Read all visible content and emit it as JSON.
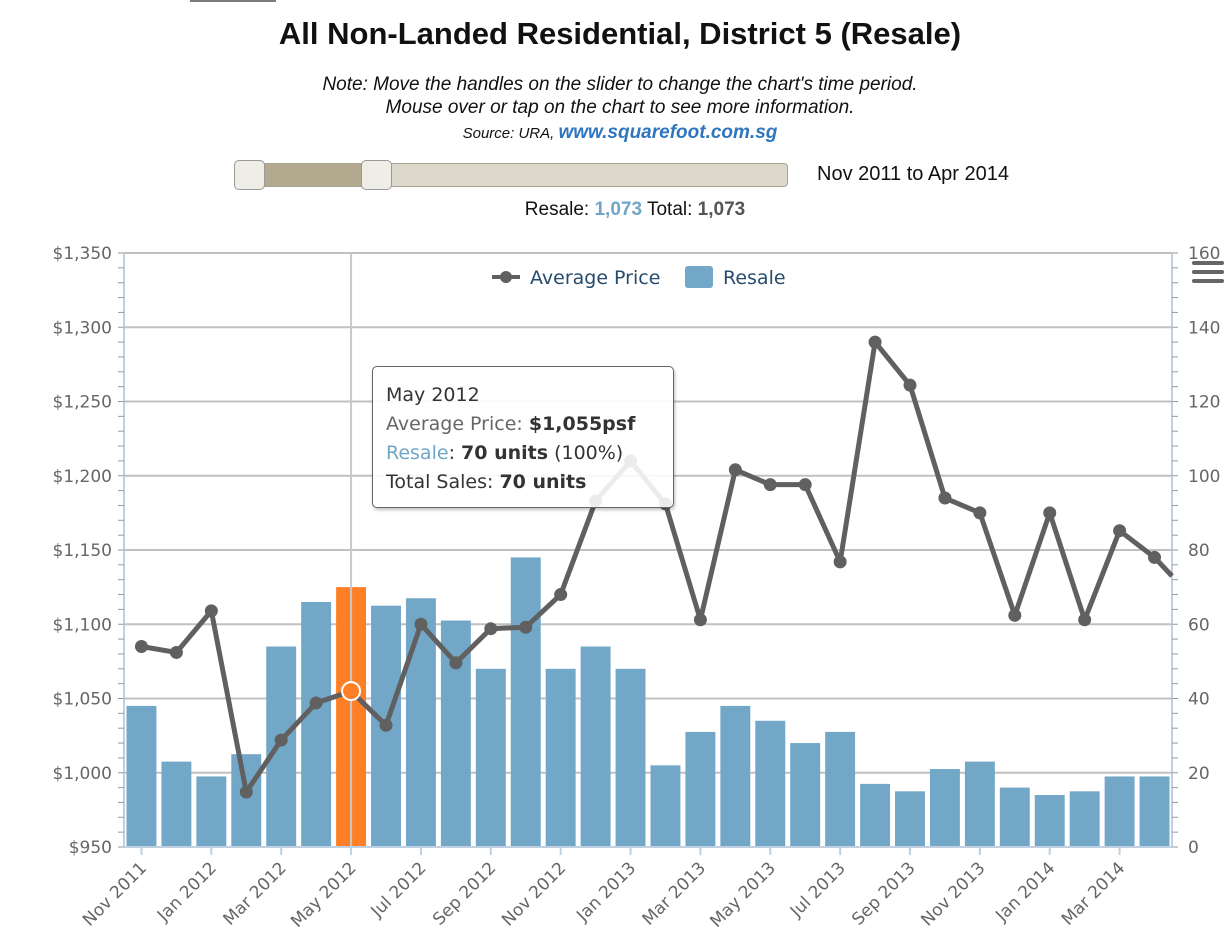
{
  "header": {
    "title": "All Non-Landed Residential, District 5 (Resale)",
    "note_line1": "Note: Move the handles on the slider to change the chart's time period.",
    "note_line2": "Mouse over or tap on the chart to see more information.",
    "source_prefix": "Source: URA, ",
    "source_link": "www.squarefoot.com.sg"
  },
  "slider": {
    "period_label": "Nov 2011 to Apr 2014"
  },
  "totals": {
    "resale_label": "Resale: ",
    "resale_value": "1,073",
    "total_label": " Total: ",
    "total_value": "1,073"
  },
  "tooltip": {
    "month": "May 2012",
    "avg_label": "Average Price: ",
    "avg_value": "$1,055psf",
    "resale_label": "Resale",
    "resale_sep": ": ",
    "resale_value": "70 units",
    "resale_pct": " (100%)",
    "total_label": "Total Sales: ",
    "total_value": "70 units"
  },
  "menu": {
    "icon": "hamburger-menu-icon"
  },
  "colors": {
    "bar": "#72a7c7",
    "bar_highlight": "#ff7f27",
    "line": "#606060",
    "grid": "#c0c0c0",
    "axis": "#c0d0e0"
  },
  "chart_data": {
    "type": "bar+line",
    "title": "All Non-Landed Residential, District 5 (Resale)",
    "categories": [
      "Nov 2011",
      "Dec 2011",
      "Jan 2012",
      "Feb 2012",
      "Mar 2012",
      "Apr 2012",
      "May 2012",
      "Jun 2012",
      "Jul 2012",
      "Aug 2012",
      "Sep 2012",
      "Oct 2012",
      "Nov 2012",
      "Dec 2012",
      "Jan 2013",
      "Feb 2013",
      "Mar 2013",
      "Apr 2013",
      "May 2013",
      "Jun 2013",
      "Jul 2013",
      "Aug 2013",
      "Sep 2013",
      "Oct 2013",
      "Nov 2013",
      "Dec 2013",
      "Jan 2014",
      "Feb 2014",
      "Mar 2014",
      "Apr 2014"
    ],
    "x_tick_labels": [
      "Nov 2011",
      "Jan 2012",
      "Mar 2012",
      "May 2012",
      "Jul 2012",
      "Sep 2012",
      "Nov 2012",
      "Jan 2013",
      "Mar 2013",
      "May 2013",
      "Jul 2013",
      "Sep 2013",
      "Nov 2013",
      "Jan 2014",
      "Mar 2014"
    ],
    "highlighted_category": "May 2012",
    "series": [
      {
        "name": "Resale",
        "type": "bar",
        "axis": "right",
        "values": [
          38,
          23,
          19,
          25,
          54,
          66,
          70,
          65,
          67,
          61,
          48,
          78,
          48,
          54,
          48,
          22,
          31,
          38,
          34,
          28,
          31,
          17,
          15,
          21,
          23,
          16,
          14,
          15,
          19,
          19
        ]
      },
      {
        "name": "Average Price",
        "type": "line",
        "axis": "left",
        "values": [
          1085,
          1081,
          1109,
          987,
          1022,
          1047,
          1055,
          1032,
          1100,
          1074,
          1097,
          1098,
          1120,
          1183,
          1210,
          1181,
          1103,
          1204,
          1194,
          1194,
          1142,
          1290,
          1261,
          1185,
          1175,
          1106,
          1175,
          1103,
          1163,
          1145
        ],
        "trailing_value": 1120
      }
    ],
    "y_left": {
      "min": 950,
      "max": 1350,
      "step": 50,
      "tick_labels": [
        "$950",
        "$1,000",
        "$1,050",
        "$1,100",
        "$1,150",
        "$1,200",
        "$1,250",
        "$1,300",
        "$1,350"
      ]
    },
    "y_right": {
      "min": 0,
      "max": 160,
      "step": 20,
      "tick_labels": [
        "0",
        "20",
        "40",
        "60",
        "80",
        "100",
        "120",
        "140",
        "160"
      ]
    },
    "legend": {
      "items": [
        "Average Price",
        "Resale"
      ],
      "position": "top-center"
    },
    "grid": true
  }
}
